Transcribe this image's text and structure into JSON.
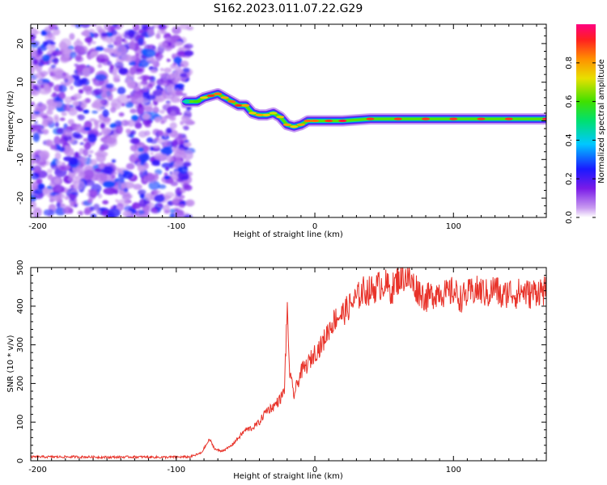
{
  "title": "S162.2023.011.07.22.G29",
  "chart_data": [
    {
      "type": "heatmap",
      "xlabel": "Height of straight line (km)",
      "ylabel": "Frequency (Hz)",
      "xlim": [
        -205,
        167
      ],
      "ylim": [
        -25,
        25
      ],
      "x_ticks": [
        -200,
        -100,
        0,
        100
      ],
      "y_ticks": [
        -20,
        -10,
        0,
        10,
        20
      ],
      "colorbar": {
        "label": "Normalized spectral amplitude",
        "ticks": [
          0.0,
          0.2,
          0.4,
          0.6,
          0.8
        ],
        "range": [
          0,
          1
        ]
      },
      "noise_region": {
        "x_range": [
          -205,
          -90
        ],
        "y_range": [
          -25,
          25
        ],
        "amplitude_range": [
          0.05,
          0.3
        ]
      },
      "ridge": {
        "x": [
          -93,
          -85,
          -80,
          -75,
          -70,
          -65,
          -60,
          -55,
          -50,
          -45,
          -40,
          -35,
          -30,
          -25,
          -20,
          -15,
          -10,
          -5,
          0,
          10,
          20,
          40,
          60,
          80,
          100,
          120,
          140,
          167
        ],
        "y": [
          5,
          5,
          6,
          6.5,
          7,
          6,
          5,
          4,
          4,
          2,
          1.5,
          1.5,
          2,
          1,
          -1,
          -1.5,
          -1,
          0,
          0,
          0,
          0,
          0.5,
          0.5,
          0.5,
          0.5,
          0.5,
          0.5,
          0.5
        ],
        "amplitude": [
          0.45,
          0.6,
          0.75,
          0.9,
          0.85,
          0.8,
          0.85,
          0.9,
          0.8,
          0.75,
          0.8,
          0.75,
          0.7,
          0.75,
          0.8,
          0.75,
          0.8,
          0.85,
          0.85,
          0.9,
          0.95,
          0.9,
          0.9,
          0.9,
          0.9,
          0.9,
          0.9,
          0.95
        ]
      }
    },
    {
      "type": "line",
      "xlabel": "Height of straight line (km)",
      "ylabel": "SNR (10 * v/v)",
      "xlim": [
        -205,
        167
      ],
      "ylim": [
        0,
        500
      ],
      "x_ticks": [
        -200,
        -100,
        0,
        100
      ],
      "y_ticks": [
        0,
        100,
        200,
        300,
        400,
        500
      ],
      "color": "#e8332a",
      "series": [
        {
          "x": [
            -205,
            -190,
            -170,
            -150,
            -130,
            -110,
            -90,
            -82,
            -76,
            -72,
            -68,
            -64,
            -60,
            -55,
            -50,
            -45,
            -40,
            -35,
            -30,
            -25,
            -22,
            -20,
            -18,
            -15,
            -10,
            -5,
            0,
            5,
            10,
            15,
            20,
            25,
            30,
            35,
            40,
            45,
            50,
            55,
            60,
            65,
            70,
            75,
            80,
            85,
            90,
            95,
            100,
            105,
            110,
            115,
            120,
            125,
            130,
            135,
            140,
            145,
            150,
            155,
            160,
            167
          ],
          "y": [
            10,
            10,
            10,
            9,
            10,
            9,
            10,
            20,
            55,
            30,
            25,
            30,
            40,
            60,
            80,
            85,
            100,
            130,
            140,
            160,
            180,
            390,
            220,
            170,
            230,
            250,
            280,
            300,
            340,
            370,
            380,
            400,
            420,
            440,
            440,
            450,
            460,
            440,
            470,
            480,
            460,
            440,
            420,
            430,
            440,
            430,
            440,
            420,
            430,
            440,
            440,
            430,
            450,
            420,
            440,
            430,
            440,
            430,
            440,
            440
          ]
        }
      ]
    }
  ]
}
